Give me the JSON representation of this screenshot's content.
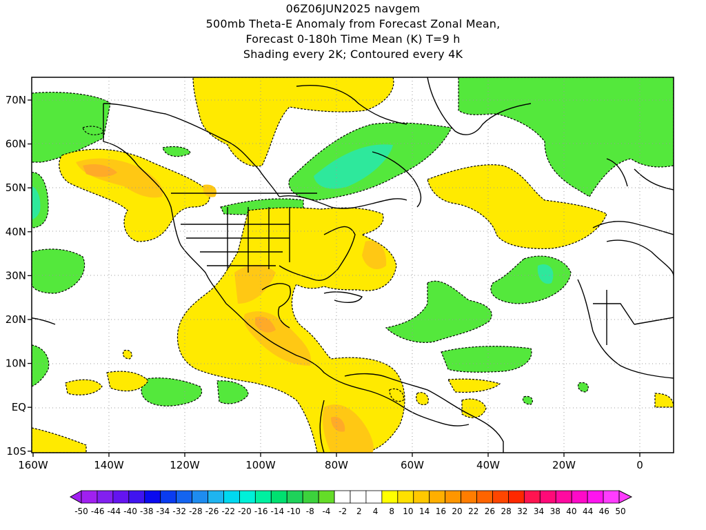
{
  "title": {
    "line1": "06Z06JUN2025 navgem",
    "line2": "500mb Theta-E Anomaly from Forecast Zonal Mean,",
    "line3": "Forecast 0-180h Time Mean (K) T=9 h",
    "line4": "Shading every 2K; Contoured every 4K"
  },
  "axes": {
    "lon_ticks": [
      "160W",
      "140W",
      "120W",
      "100W",
      "80W",
      "60W",
      "40W",
      "20W",
      "0"
    ],
    "lat_ticks": [
      "70N",
      "60N",
      "50N",
      "40N",
      "30N",
      "20N",
      "10N",
      "EQ",
      "10S"
    ]
  },
  "colorbar": {
    "labels": [
      "-50",
      "-46",
      "-44",
      "-40",
      "-38",
      "-34",
      "-32",
      "-28",
      "-26",
      "-22",
      "-20",
      "-16",
      "-14",
      "-10",
      "-8",
      "-4",
      "-2",
      "2",
      "4",
      "8",
      "10",
      "14",
      "16",
      "20",
      "22",
      "26",
      "28",
      "32",
      "34",
      "38",
      "40",
      "44",
      "46",
      "50"
    ],
    "colors": [
      "#a020f0",
      "#8220f0",
      "#6414f0",
      "#4014f0",
      "#0a0aef",
      "#0a3cf0",
      "#1464f0",
      "#1e8cf0",
      "#1eb4f0",
      "#00d8f0",
      "#00f0d8",
      "#00f0a0",
      "#00e070",
      "#1ed25a",
      "#3cd23c",
      "#64dc28",
      "#ffffff",
      "#ffffff",
      "#ffffff",
      "#ffff00",
      "#ffe100",
      "#ffc800",
      "#ffaf00",
      "#ff9600",
      "#ff7d00",
      "#ff6400",
      "#ff4600",
      "#ff2800",
      "#ff1450",
      "#ff0a78",
      "#ff0aa0",
      "#ff0ac8",
      "#ff14f0",
      "#ff3cff"
    ]
  },
  "map_colors": {
    "neg_shade": "#54e83c",
    "neg_shade_strong": "#2ee89c",
    "pos_shade": "#ffea00",
    "pos_shade_strong": "#ffc814",
    "pos_shade_max": "#ffaa28"
  }
}
